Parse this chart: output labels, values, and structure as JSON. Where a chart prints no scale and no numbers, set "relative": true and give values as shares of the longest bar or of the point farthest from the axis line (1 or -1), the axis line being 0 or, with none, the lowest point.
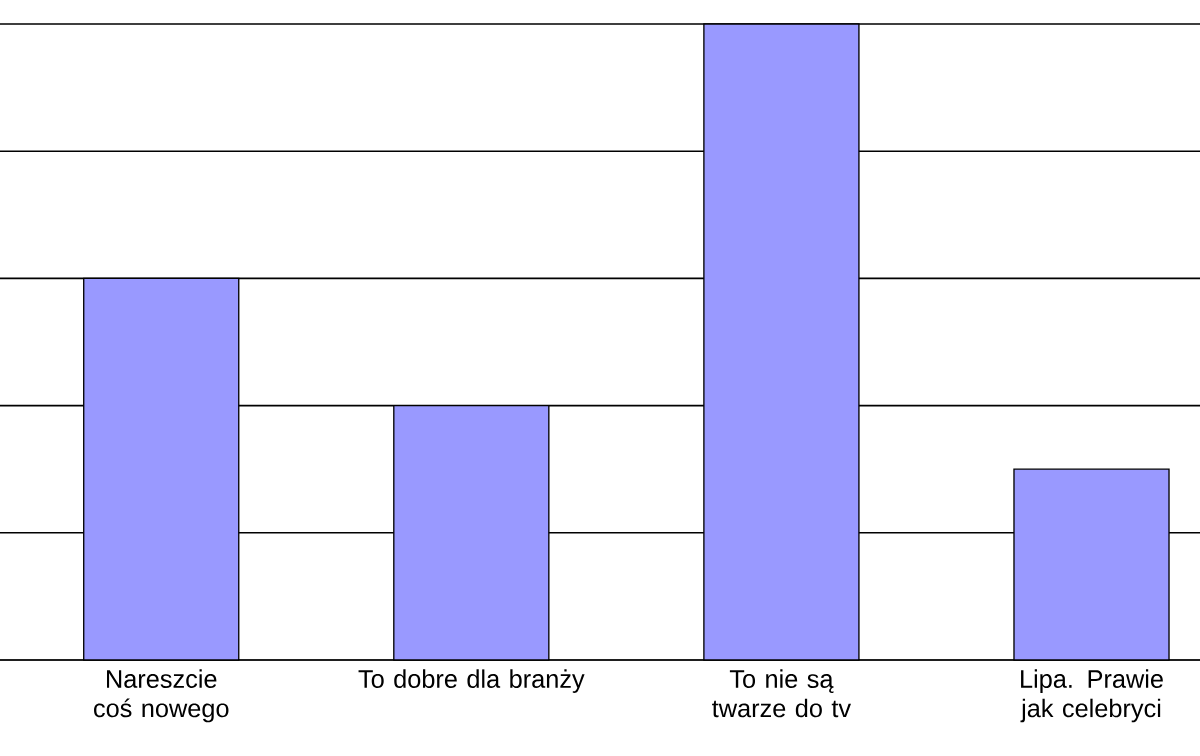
{
  "chart_data": {
    "type": "bar",
    "categories": [
      "Nareszcie coś nowego",
      "To dobre dla branży",
      "To nie są twarze do tv",
      "Lipa. Prawie jak celebryci"
    ],
    "values": [
      0.6,
      0.4,
      1,
      0.3
    ],
    "color": "#9999ff",
    "relative": true,
    "grid": "y"
  }
}
